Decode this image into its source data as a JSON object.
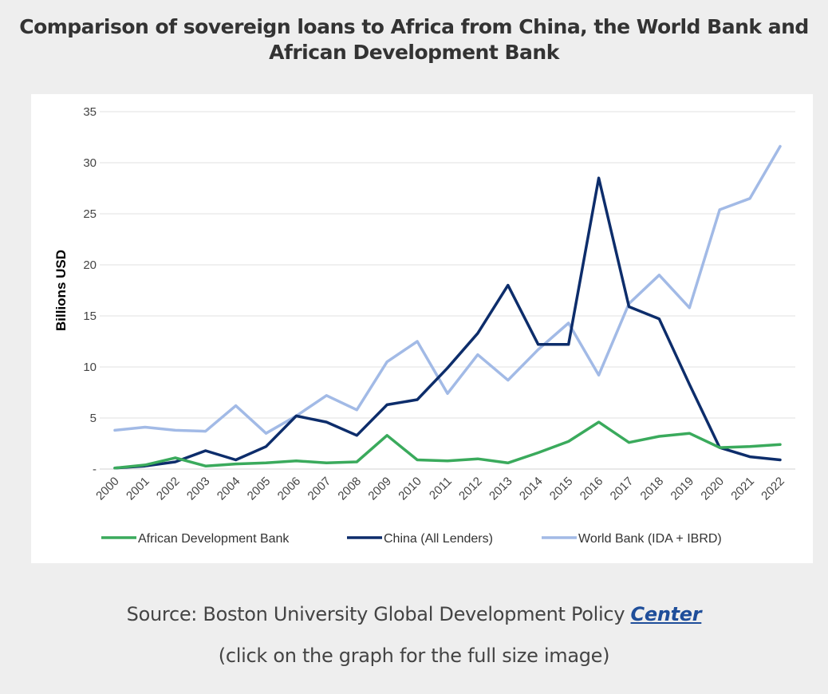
{
  "header": {
    "title_line1": "Comparison of sovereign loans to Africa from China, the World Bank and",
    "title_line2": "African Development Bank"
  },
  "footer": {
    "source_prefix": "Source: Boston University Global Development Policy ",
    "source_link": "Center",
    "note": "(click on the graph for the full size image)"
  },
  "chart_data": {
    "type": "line",
    "title": "",
    "xlabel": "",
    "ylabel": "Billions USD",
    "ylim": [
      0,
      35
    ],
    "y_ticks": [
      0,
      5,
      10,
      15,
      20,
      25,
      30,
      35
    ],
    "y_tick_labels": [
      "-",
      "5",
      "10",
      "15",
      "20",
      "25",
      "30",
      "35"
    ],
    "grid": "horizontal",
    "legend_position": "bottom",
    "x": [
      "2000",
      "2001",
      "2002",
      "2003",
      "2004",
      "2005",
      "2006",
      "2007",
      "2008",
      "2009",
      "2010",
      "2011",
      "2012",
      "2013",
      "2014",
      "2015",
      "2016",
      "2017",
      "2018",
      "2019",
      "2020",
      "2021",
      "2022"
    ],
    "series": [
      {
        "name": "African Development Bank",
        "color": "#3aaa5c",
        "values": [
          0.1,
          0.4,
          1.1,
          0.3,
          0.5,
          0.6,
          0.8,
          0.6,
          0.7,
          3.3,
          0.9,
          0.8,
          1.0,
          0.6,
          1.6,
          2.7,
          4.6,
          2.6,
          3.2,
          3.5,
          2.1,
          2.2,
          2.4
        ]
      },
      {
        "name": "China (All Lenders)",
        "color": "#0d2d6b",
        "values": [
          0.1,
          0.3,
          0.7,
          1.8,
          0.9,
          2.2,
          5.2,
          4.6,
          3.3,
          6.3,
          6.8,
          9.9,
          13.3,
          18.0,
          12.2,
          12.2,
          28.5,
          15.9,
          14.7,
          8.3,
          2.1,
          1.2,
          0.9
        ]
      },
      {
        "name": "World Bank (IDA + IBRD)",
        "color": "#a2bae6",
        "values": [
          3.8,
          4.1,
          3.8,
          3.7,
          6.2,
          3.5,
          5.2,
          7.2,
          5.8,
          10.5,
          12.5,
          7.4,
          11.2,
          8.7,
          11.7,
          14.3,
          9.2,
          16.2,
          19.0,
          15.8,
          25.4,
          26.5,
          31.6
        ]
      }
    ]
  }
}
